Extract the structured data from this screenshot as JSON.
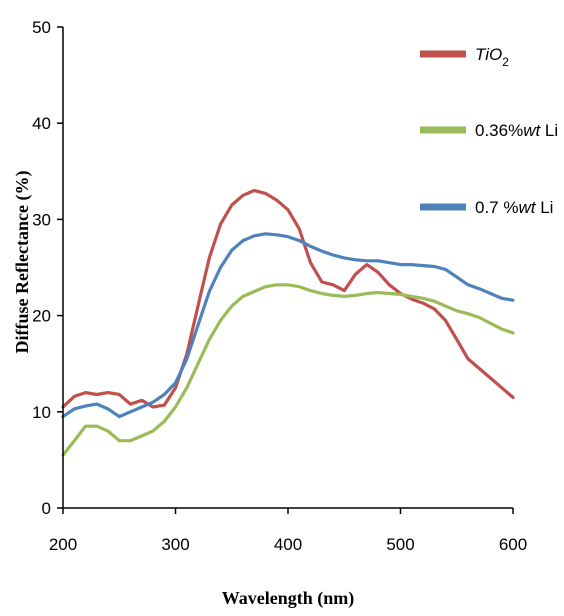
{
  "chart_data": {
    "type": "line",
    "xlabel": "Wavelength (nm)",
    "ylabel": "Diffuse Reflectance (%)",
    "xlim": [
      200,
      600
    ],
    "ylim": [
      0,
      50
    ],
    "xticks": [
      "200",
      "300",
      "400",
      "500",
      "600"
    ],
    "yticks": [
      "0",
      "10",
      "20",
      "30",
      "40",
      "50"
    ],
    "grid": false,
    "legend_position": "top-right",
    "series": [
      {
        "name": "TiO2",
        "legend_main": "TiO",
        "legend_sub": "2",
        "color": "#c0504d",
        "x": [
          200,
          210,
          220,
          230,
          240,
          250,
          260,
          270,
          280,
          290,
          300,
          310,
          320,
          330,
          340,
          350,
          360,
          370,
          380,
          390,
          400,
          410,
          420,
          430,
          440,
          450,
          460,
          470,
          480,
          490,
          500,
          510,
          520,
          530,
          540,
          550,
          560,
          570,
          580,
          590,
          600
        ],
        "y": [
          10.5,
          11.6,
          12,
          11.8,
          12,
          11.8,
          10.8,
          11.2,
          10.5,
          10.7,
          12.5,
          16,
          21,
          26,
          29.5,
          31.5,
          32.5,
          33,
          32.7,
          32,
          31,
          29,
          25.5,
          23.5,
          23.2,
          22.6,
          24.3,
          25.3,
          24.5,
          23.2,
          22.3,
          21.7,
          21.3,
          20.7,
          19.5,
          17.5,
          15.5,
          14.5,
          13.5,
          12.5,
          11.5
        ]
      },
      {
        "name": "0.36%wt Li",
        "legend_main": "0.36%",
        "legend_italic": "wt",
        "legend_rest": " Li",
        "color": "#9bbb59",
        "x": [
          200,
          210,
          220,
          230,
          240,
          250,
          260,
          270,
          280,
          290,
          300,
          310,
          320,
          330,
          340,
          350,
          360,
          370,
          380,
          390,
          400,
          410,
          420,
          430,
          440,
          450,
          460,
          470,
          480,
          490,
          500,
          510,
          520,
          530,
          540,
          550,
          560,
          570,
          580,
          590,
          600
        ],
        "y": [
          5.5,
          7,
          8.5,
          8.5,
          8,
          7,
          7,
          7.5,
          8,
          9,
          10.5,
          12.5,
          15,
          17.5,
          19.5,
          21,
          22,
          22.5,
          23,
          23.2,
          23.2,
          23,
          22.6,
          22.3,
          22.1,
          22,
          22.1,
          22.3,
          22.4,
          22.3,
          22.2,
          22,
          21.8,
          21.5,
          21,
          20.5,
          20.2,
          19.8,
          19.2,
          18.6,
          18.2
        ]
      },
      {
        "name": "0.7 %wt Li",
        "legend_main": "0.7 %",
        "legend_italic": "wt",
        "legend_rest": " Li",
        "color": "#4f81bd",
        "x": [
          200,
          210,
          220,
          230,
          240,
          250,
          260,
          270,
          280,
          290,
          300,
          310,
          320,
          330,
          340,
          350,
          360,
          370,
          380,
          390,
          400,
          410,
          420,
          430,
          440,
          450,
          460,
          470,
          480,
          490,
          500,
          510,
          520,
          530,
          540,
          550,
          560,
          570,
          580,
          590,
          600
        ],
        "y": [
          9.5,
          10.3,
          10.6,
          10.8,
          10.3,
          9.5,
          10,
          10.5,
          11,
          11.8,
          13,
          15.5,
          19,
          22.5,
          25,
          26.8,
          27.8,
          28.3,
          28.5,
          28.4,
          28.2,
          27.8,
          27.2,
          26.7,
          26.3,
          26,
          25.8,
          25.7,
          25.7,
          25.5,
          25.3,
          25.3,
          25.2,
          25.1,
          24.8,
          24,
          23.2,
          22.8,
          22.3,
          21.8,
          21.6
        ]
      }
    ]
  }
}
